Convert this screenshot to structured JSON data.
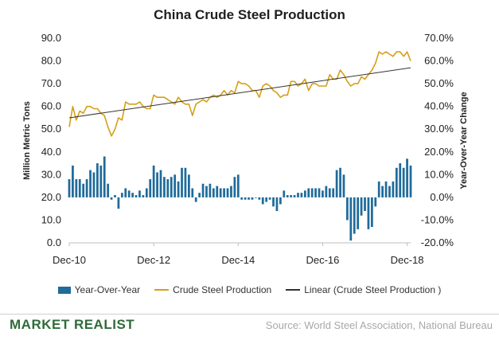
{
  "chart_data": {
    "type": "bar",
    "title": "China Crude Steel Production",
    "xlabel": "",
    "ylabel": "Million Metric Tons",
    "y2label": "Year-Over-Year Change",
    "ylim": [
      0,
      90
    ],
    "y2lim": [
      -20,
      70
    ],
    "y_ticks": [
      "0.0",
      "10.0",
      "20.0",
      "30.0",
      "40.0",
      "50.0",
      "60.0",
      "70.0",
      "80.0",
      "90.0"
    ],
    "y2_ticks": [
      "-20.0%",
      "-10.0%",
      "0.0%",
      "10.0%",
      "20.0%",
      "30.0%",
      "40.0%",
      "50.0%",
      "60.0%",
      "70.0%"
    ],
    "x_tick_labels": [
      "Dec-10",
      "Dec-12",
      "Dec-14",
      "Dec-16",
      "Dec-18"
    ],
    "x_tick_indices": [
      0,
      24,
      48,
      72,
      96
    ],
    "series": [
      {
        "name": "Year-Over-Year",
        "kind": "bar",
        "axis": "right",
        "color": "#1f6b9a",
        "values": [
          8,
          14,
          8,
          8,
          6,
          8,
          12,
          11,
          15,
          14,
          18,
          6,
          -1,
          1,
          -5,
          2,
          4,
          3,
          2,
          1,
          3,
          1,
          4,
          8,
          14,
          11,
          12,
          9,
          8,
          9,
          10,
          7,
          13,
          13,
          10,
          4,
          -2,
          2,
          6,
          5,
          6,
          4,
          5,
          4,
          4,
          4,
          5,
          9,
          10,
          -1,
          -1,
          -1,
          -1,
          0,
          -1,
          -3,
          -2,
          -1,
          -4,
          -6,
          -3,
          3,
          1,
          1,
          1,
          2,
          2,
          3,
          4,
          4,
          4,
          4,
          3,
          5,
          4,
          4,
          12,
          13,
          10,
          -10,
          -19,
          -16,
          -14,
          -8,
          -6,
          -14,
          -13,
          -4,
          7,
          5,
          7,
          5,
          7,
          13,
          15,
          13,
          17,
          14
        ]
      },
      {
        "name": "Crude Steel Production",
        "kind": "line",
        "axis": "left",
        "color": "#d4a017",
        "values": [
          51,
          60,
          54,
          58,
          57,
          60,
          60,
          59,
          59,
          57,
          56,
          51,
          47,
          50,
          55,
          54,
          62,
          61,
          61,
          61,
          62,
          60,
          59,
          59,
          65,
          64,
          64,
          64,
          63,
          62,
          61,
          64,
          62,
          61,
          61,
          56,
          61,
          62,
          63,
          62,
          64,
          65,
          64,
          65,
          67,
          65,
          67,
          66,
          71,
          70,
          70,
          69,
          67,
          67,
          64,
          69,
          70,
          69,
          67,
          66,
          64,
          65,
          65,
          71,
          71,
          69,
          70,
          72,
          67,
          70,
          70,
          69,
          69,
          69,
          74,
          72,
          72,
          76,
          74,
          71,
          69,
          70,
          70,
          73,
          72,
          74,
          76,
          79,
          84,
          83,
          84,
          83,
          82,
          84,
          84,
          82,
          84,
          80
        ]
      },
      {
        "name": "Linear (Crude Steel Production )",
        "kind": "trendline",
        "axis": "left",
        "color": "#333333",
        "start": 55,
        "end": 77
      }
    ]
  },
  "legend": {
    "bar_label": "Year-Over-Year",
    "line_label": "Crude Steel Production",
    "trend_label": "Linear (Crude Steel Production )"
  },
  "footer": {
    "brand": "MARKET REALIST",
    "source": "Source: World Steel Association, National Bureau"
  }
}
